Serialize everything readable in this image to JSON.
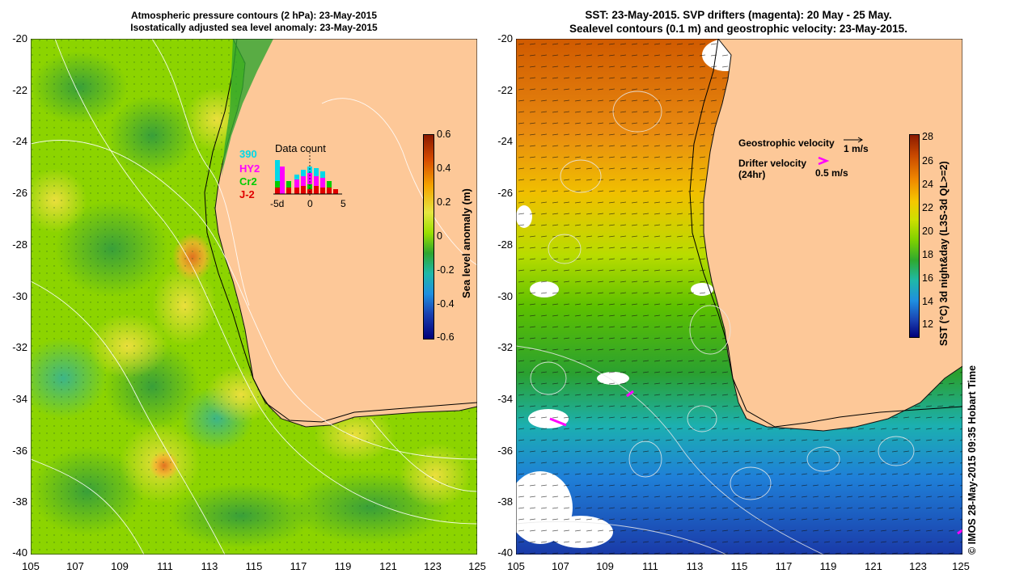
{
  "left_panel": {
    "title_line1": "Atmospheric pressure contours (2 hPa): 23-May-2015",
    "title_line2": "Isostatically adjusted sea level anomaly: 23-May-2015",
    "colorbar": {
      "label": "Sea level anomaly (m)",
      "ticks": [
        "0.6",
        "0.4",
        "0.2",
        "0",
        "-0.2",
        "-0.4",
        "-0.6"
      ],
      "colors": [
        "#8b1a00",
        "#d64a00",
        "#f5a400",
        "#e6e640",
        "#9be000",
        "#2fa52f",
        "#1fb8a8",
        "#1f8fe0",
        "#1a3fb0",
        "#00007a"
      ]
    },
    "data_count": {
      "title": "Data count",
      "sources": [
        "390",
        "HY2",
        "Cr2",
        "J-2"
      ],
      "source_colors": [
        "#00d8e8",
        "#ff00ff",
        "#00cc00",
        "#e00000"
      ],
      "xticks": [
        "-5d",
        "0",
        "5"
      ]
    }
  },
  "right_panel": {
    "title_line1": "SST: 23-May-2015. SVP drifters (magenta): 20 May - 25 May.",
    "title_line2": "Sealevel contours (0.1 m) and geostrophic velocity: 23-May-2015.",
    "legend": {
      "geostrophic_label": "Geostrophic velocity",
      "geostrophic_scale": "1 m/s",
      "drifter_label_line1": "Drifter velocity",
      "drifter_label_line2": "(24hr)",
      "drifter_scale": "0.5 m/s"
    },
    "colorbar": {
      "label": "SST (°C) 3d night&day (L3S-3d QL>=2)",
      "ticks": [
        "28",
        "26",
        "24",
        "22",
        "20",
        "18",
        "16",
        "14",
        "12"
      ],
      "colors": [
        "#8b1a00",
        "#c84800",
        "#f08800",
        "#f5c800",
        "#cde000",
        "#7fd100",
        "#2faa2f",
        "#1fb8a8",
        "#1f8fe0",
        "#1a3fb0",
        "#00007a"
      ]
    }
  },
  "axes": {
    "y_ticks": [
      "-20",
      "-22",
      "-24",
      "-26",
      "-28",
      "-30",
      "-32",
      "-34",
      "-36",
      "-38",
      "-40"
    ],
    "x_ticks": [
      "105",
      "107",
      "109",
      "111",
      "113",
      "115",
      "117",
      "119",
      "121",
      "123",
      "125"
    ]
  },
  "credit": "© IMOS 28-May-2015 09:35 Hobart Time",
  "colors": {
    "land": "#fdc898",
    "ocean_left": "#7fd100",
    "ocean_right_warm": "#e07a10",
    "ocean_right_cold": "#1f5fc0"
  }
}
